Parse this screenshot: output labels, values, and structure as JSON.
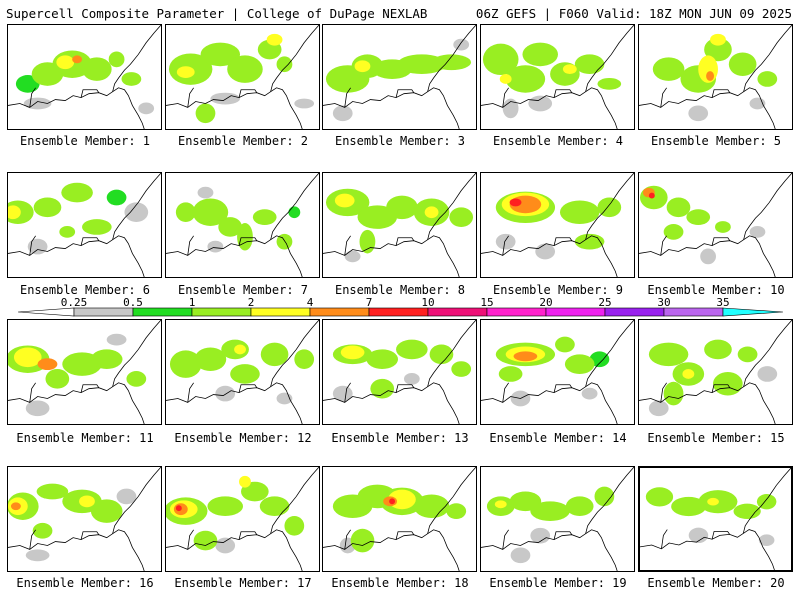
{
  "header": {
    "left": "Supercell Composite Parameter | College of DuPage NEXLAB",
    "right": "06Z GEFS | F060 Valid: 18Z MON JUN 09 2025"
  },
  "members": [
    {
      "label": "Ensemble Member: 1",
      "blobs": [
        [
          20,
          60,
          12,
          9,
          0.5
        ],
        [
          40,
          50,
          16,
          12,
          1
        ],
        [
          65,
          40,
          20,
          14,
          1
        ],
        [
          90,
          45,
          15,
          12,
          1
        ],
        [
          58,
          38,
          9,
          7,
          2
        ],
        [
          70,
          35,
          5,
          4,
          4
        ],
        [
          110,
          35,
          8,
          8,
          1
        ],
        [
          125,
          55,
          10,
          7,
          1
        ],
        [
          30,
          80,
          14,
          6,
          0.25
        ],
        [
          140,
          85,
          8,
          6,
          0.25
        ]
      ]
    },
    {
      "label": "Ensemble Member: 2",
      "blobs": [
        [
          25,
          45,
          22,
          16,
          1
        ],
        [
          20,
          48,
          9,
          6,
          2
        ],
        [
          55,
          30,
          20,
          12,
          1
        ],
        [
          80,
          45,
          18,
          14,
          1
        ],
        [
          105,
          25,
          12,
          10,
          1
        ],
        [
          120,
          40,
          8,
          8,
          1
        ],
        [
          40,
          90,
          10,
          10,
          1
        ],
        [
          60,
          75,
          15,
          6,
          0.25
        ],
        [
          110,
          15,
          8,
          6,
          2
        ],
        [
          140,
          80,
          10,
          5,
          0.25
        ]
      ]
    },
    {
      "label": "Ensemble Member: 3",
      "blobs": [
        [
          25,
          55,
          22,
          14,
          1
        ],
        [
          45,
          42,
          16,
          12,
          1
        ],
        [
          40,
          42,
          8,
          6,
          2
        ],
        [
          70,
          45,
          20,
          10,
          1
        ],
        [
          100,
          40,
          25,
          10,
          1
        ],
        [
          130,
          38,
          20,
          8,
          1
        ],
        [
          20,
          90,
          10,
          8,
          0.25
        ],
        [
          140,
          20,
          8,
          6,
          0.25
        ]
      ]
    },
    {
      "label": "Ensemble Member: 4",
      "blobs": [
        [
          20,
          35,
          18,
          16,
          1
        ],
        [
          45,
          55,
          20,
          14,
          1
        ],
        [
          60,
          30,
          18,
          12,
          1
        ],
        [
          85,
          50,
          15,
          12,
          1
        ],
        [
          110,
          40,
          15,
          10,
          1
        ],
        [
          130,
          60,
          12,
          6,
          1
        ],
        [
          25,
          55,
          6,
          5,
          2
        ],
        [
          90,
          45,
          7,
          5,
          2
        ],
        [
          60,
          80,
          12,
          8,
          0.25
        ],
        [
          30,
          85,
          8,
          10,
          0.25
        ]
      ]
    },
    {
      "label": "Ensemble Member: 5",
      "blobs": [
        [
          30,
          45,
          16,
          12,
          1
        ],
        [
          60,
          55,
          18,
          14,
          1
        ],
        [
          80,
          25,
          14,
          12,
          1
        ],
        [
          105,
          40,
          14,
          12,
          1
        ],
        [
          70,
          45,
          10,
          14,
          2
        ],
        [
          72,
          52,
          4,
          5,
          4
        ],
        [
          80,
          15,
          8,
          6,
          2
        ],
        [
          130,
          55,
          10,
          8,
          1
        ],
        [
          60,
          90,
          10,
          8,
          0.25
        ],
        [
          120,
          80,
          8,
          6,
          0.25
        ]
      ]
    },
    {
      "label": "Ensemble Member: 6",
      "blobs": [
        [
          10,
          40,
          16,
          12,
          1
        ],
        [
          5,
          40,
          8,
          7,
          2
        ],
        [
          40,
          35,
          14,
          10,
          1
        ],
        [
          70,
          20,
          16,
          10,
          1
        ],
        [
          90,
          55,
          15,
          8,
          1
        ],
        [
          130,
          40,
          12,
          10,
          0.25
        ],
        [
          110,
          25,
          10,
          8,
          0.5
        ],
        [
          30,
          75,
          10,
          8,
          0.25
        ],
        [
          60,
          60,
          8,
          6,
          1
        ]
      ]
    },
    {
      "label": "Ensemble Member: 7",
      "blobs": [
        [
          20,
          40,
          10,
          10,
          1
        ],
        [
          45,
          40,
          18,
          14,
          1
        ],
        [
          65,
          55,
          12,
          10,
          1
        ],
        [
          80,
          65,
          8,
          14,
          1
        ],
        [
          100,
          45,
          12,
          8,
          1
        ],
        [
          120,
          70,
          8,
          8,
          1
        ],
        [
          40,
          20,
          8,
          6,
          0.25
        ],
        [
          50,
          75,
          8,
          6,
          0.25
        ],
        [
          130,
          40,
          6,
          6,
          0.5
        ]
      ]
    },
    {
      "label": "Ensemble Member: 8",
      "blobs": [
        [
          25,
          30,
          22,
          14,
          1
        ],
        [
          22,
          28,
          10,
          7,
          2
        ],
        [
          55,
          45,
          20,
          12,
          1
        ],
        [
          80,
          35,
          16,
          12,
          1
        ],
        [
          110,
          40,
          18,
          14,
          1
        ],
        [
          140,
          45,
          12,
          10,
          1
        ],
        [
          110,
          40,
          7,
          6,
          2
        ],
        [
          45,
          70,
          8,
          12,
          1
        ],
        [
          30,
          85,
          8,
          6,
          0.25
        ]
      ]
    },
    {
      "label": "Ensemble Member: 9",
      "blobs": [
        [
          45,
          35,
          30,
          16,
          1
        ],
        [
          45,
          32,
          24,
          12,
          2
        ],
        [
          45,
          32,
          16,
          9,
          4
        ],
        [
          35,
          30,
          6,
          4,
          7
        ],
        [
          100,
          40,
          20,
          12,
          1
        ],
        [
          130,
          35,
          12,
          10,
          1
        ],
        [
          110,
          70,
          15,
          8,
          1
        ],
        [
          25,
          70,
          10,
          8,
          0.25
        ],
        [
          65,
          80,
          10,
          8,
          0.25
        ]
      ]
    },
    {
      "label": "Ensemble Member: 10",
      "blobs": [
        [
          15,
          25,
          14,
          12,
          1
        ],
        [
          10,
          20,
          6,
          5,
          4
        ],
        [
          13,
          23,
          3,
          3,
          7
        ],
        [
          40,
          35,
          12,
          10,
          1
        ],
        [
          60,
          45,
          12,
          8,
          1
        ],
        [
          35,
          60,
          10,
          8,
          1
        ],
        [
          85,
          55,
          8,
          6,
          1
        ],
        [
          70,
          85,
          8,
          8,
          0.25
        ],
        [
          120,
          60,
          8,
          6,
          0.25
        ]
      ]
    },
    {
      "label": "Ensemble Member: 11",
      "blobs": [
        [
          20,
          40,
          22,
          14,
          1
        ],
        [
          20,
          38,
          14,
          10,
          2
        ],
        [
          40,
          45,
          10,
          6,
          4
        ],
        [
          75,
          45,
          20,
          12,
          1
        ],
        [
          100,
          40,
          16,
          10,
          1
        ],
        [
          50,
          60,
          12,
          10,
          1
        ],
        [
          130,
          60,
          10,
          8,
          1
        ],
        [
          30,
          90,
          12,
          8,
          0.25
        ],
        [
          110,
          20,
          10,
          6,
          0.25
        ]
      ]
    },
    {
      "label": "Ensemble Member: 12",
      "blobs": [
        [
          20,
          45,
          16,
          14,
          1
        ],
        [
          45,
          40,
          16,
          12,
          1
        ],
        [
          70,
          30,
          14,
          10,
          1
        ],
        [
          80,
          55,
          15,
          10,
          1
        ],
        [
          110,
          35,
          14,
          12,
          1
        ],
        [
          140,
          40,
          10,
          10,
          1
        ],
        [
          75,
          30,
          6,
          5,
          2
        ],
        [
          60,
          75,
          10,
          8,
          0.25
        ],
        [
          120,
          80,
          8,
          6,
          0.25
        ]
      ]
    },
    {
      "label": "Ensemble Member: 13",
      "blobs": [
        [
          30,
          35,
          20,
          10,
          1
        ],
        [
          30,
          33,
          12,
          7,
          2
        ],
        [
          60,
          40,
          16,
          10,
          1
        ],
        [
          90,
          30,
          16,
          10,
          1
        ],
        [
          120,
          35,
          12,
          10,
          1
        ],
        [
          140,
          50,
          10,
          8,
          1
        ],
        [
          60,
          70,
          12,
          10,
          1
        ],
        [
          20,
          75,
          10,
          8,
          0.25
        ],
        [
          90,
          60,
          8,
          6,
          0.25
        ]
      ]
    },
    {
      "label": "Ensemble Member: 14",
      "blobs": [
        [
          45,
          35,
          30,
          12,
          1
        ],
        [
          45,
          35,
          20,
          8,
          2
        ],
        [
          45,
          37,
          12,
          5,
          4
        ],
        [
          100,
          45,
          15,
          10,
          1
        ],
        [
          85,
          25,
          10,
          8,
          1
        ],
        [
          30,
          55,
          12,
          8,
          1
        ],
        [
          120,
          40,
          10,
          8,
          0.5
        ],
        [
          40,
          80,
          10,
          8,
          0.25
        ],
        [
          110,
          75,
          8,
          6,
          0.25
        ]
      ]
    },
    {
      "label": "Ensemble Member: 15",
      "blobs": [
        [
          30,
          35,
          20,
          12,
          1
        ],
        [
          50,
          55,
          16,
          12,
          1
        ],
        [
          80,
          30,
          14,
          10,
          1
        ],
        [
          90,
          65,
          15,
          12,
          1
        ],
        [
          35,
          75,
          10,
          12,
          1
        ],
        [
          50,
          55,
          6,
          5,
          2
        ],
        [
          110,
          35,
          10,
          8,
          1
        ],
        [
          130,
          55,
          10,
          8,
          0.25
        ],
        [
          20,
          90,
          10,
          8,
          0.25
        ]
      ]
    },
    {
      "label": "Ensemble Member: 16",
      "blobs": [
        [
          15,
          40,
          16,
          14,
          1
        ],
        [
          10,
          40,
          10,
          9,
          2
        ],
        [
          8,
          40,
          5,
          4,
          4
        ],
        [
          45,
          25,
          16,
          8,
          1
        ],
        [
          75,
          35,
          20,
          12,
          1
        ],
        [
          100,
          45,
          16,
          12,
          1
        ],
        [
          80,
          35,
          8,
          6,
          2
        ],
        [
          35,
          65,
          10,
          8,
          1
        ],
        [
          120,
          30,
          10,
          8,
          0.25
        ],
        [
          30,
          90,
          12,
          6,
          0.25
        ]
      ]
    },
    {
      "label": "Ensemble Member: 17",
      "blobs": [
        [
          20,
          45,
          22,
          14,
          1
        ],
        [
          18,
          43,
          14,
          9,
          2
        ],
        [
          15,
          43,
          7,
          6,
          4
        ],
        [
          13,
          42,
          3,
          3,
          7
        ],
        [
          60,
          40,
          18,
          10,
          1
        ],
        [
          90,
          25,
          14,
          10,
          1
        ],
        [
          110,
          40,
          15,
          10,
          1
        ],
        [
          80,
          15,
          6,
          6,
          2
        ],
        [
          40,
          75,
          12,
          10,
          1
        ],
        [
          130,
          60,
          10,
          10,
          1
        ],
        [
          60,
          80,
          10,
          8,
          0.25
        ]
      ]
    },
    {
      "label": "Ensemble Member: 18",
      "blobs": [
        [
          30,
          40,
          20,
          12,
          1
        ],
        [
          55,
          30,
          20,
          12,
          1
        ],
        [
          80,
          35,
          22,
          14,
          1
        ],
        [
          80,
          33,
          14,
          10,
          2
        ],
        [
          68,
          35,
          7,
          5,
          4
        ],
        [
          70,
          35,
          3,
          3,
          7
        ],
        [
          110,
          40,
          18,
          12,
          1
        ],
        [
          135,
          45,
          10,
          8,
          1
        ],
        [
          40,
          75,
          12,
          12,
          1
        ],
        [
          25,
          80,
          8,
          8,
          0.25
        ]
      ]
    },
    {
      "label": "Ensemble Member: 19",
      "blobs": [
        [
          20,
          40,
          14,
          10,
          1
        ],
        [
          45,
          35,
          16,
          10,
          1
        ],
        [
          70,
          45,
          20,
          10,
          1
        ],
        [
          100,
          40,
          14,
          10,
          1
        ],
        [
          125,
          30,
          10,
          10,
          1
        ],
        [
          20,
          38,
          6,
          4,
          2
        ],
        [
          60,
          70,
          10,
          8,
          0.25
        ],
        [
          40,
          90,
          10,
          8,
          0.25
        ]
      ]
    },
    {
      "label": "Ensemble Member: 20",
      "blobs": [
        [
          20,
          30,
          14,
          10,
          1
        ],
        [
          50,
          40,
          18,
          10,
          1
        ],
        [
          80,
          35,
          20,
          12,
          1
        ],
        [
          110,
          45,
          14,
          8,
          1
        ],
        [
          130,
          35,
          10,
          8,
          1
        ],
        [
          75,
          35,
          6,
          4,
          2
        ],
        [
          60,
          70,
          10,
          8,
          0.25
        ],
        [
          130,
          75,
          8,
          6,
          0.25
        ]
      ]
    }
  ],
  "colorbar": {
    "labels": [
      "0.25",
      "0.5",
      "1",
      "2",
      "4",
      "7",
      "10",
      "15",
      "20",
      "25",
      "30",
      "35"
    ],
    "colors": [
      "#ffffff",
      "#c8c8c8",
      "#22dd22",
      "#99ee22",
      "#ffff22",
      "#ff8c1a",
      "#ff2020",
      "#ee1177",
      "#ff22cc",
      "#ee22ee",
      "#9922ee",
      "#bb66ee",
      "#22ffff"
    ],
    "thresholds": [
      0.25,
      0.5,
      1,
      2,
      4,
      7,
      10,
      15,
      20,
      25,
      30,
      35
    ]
  }
}
